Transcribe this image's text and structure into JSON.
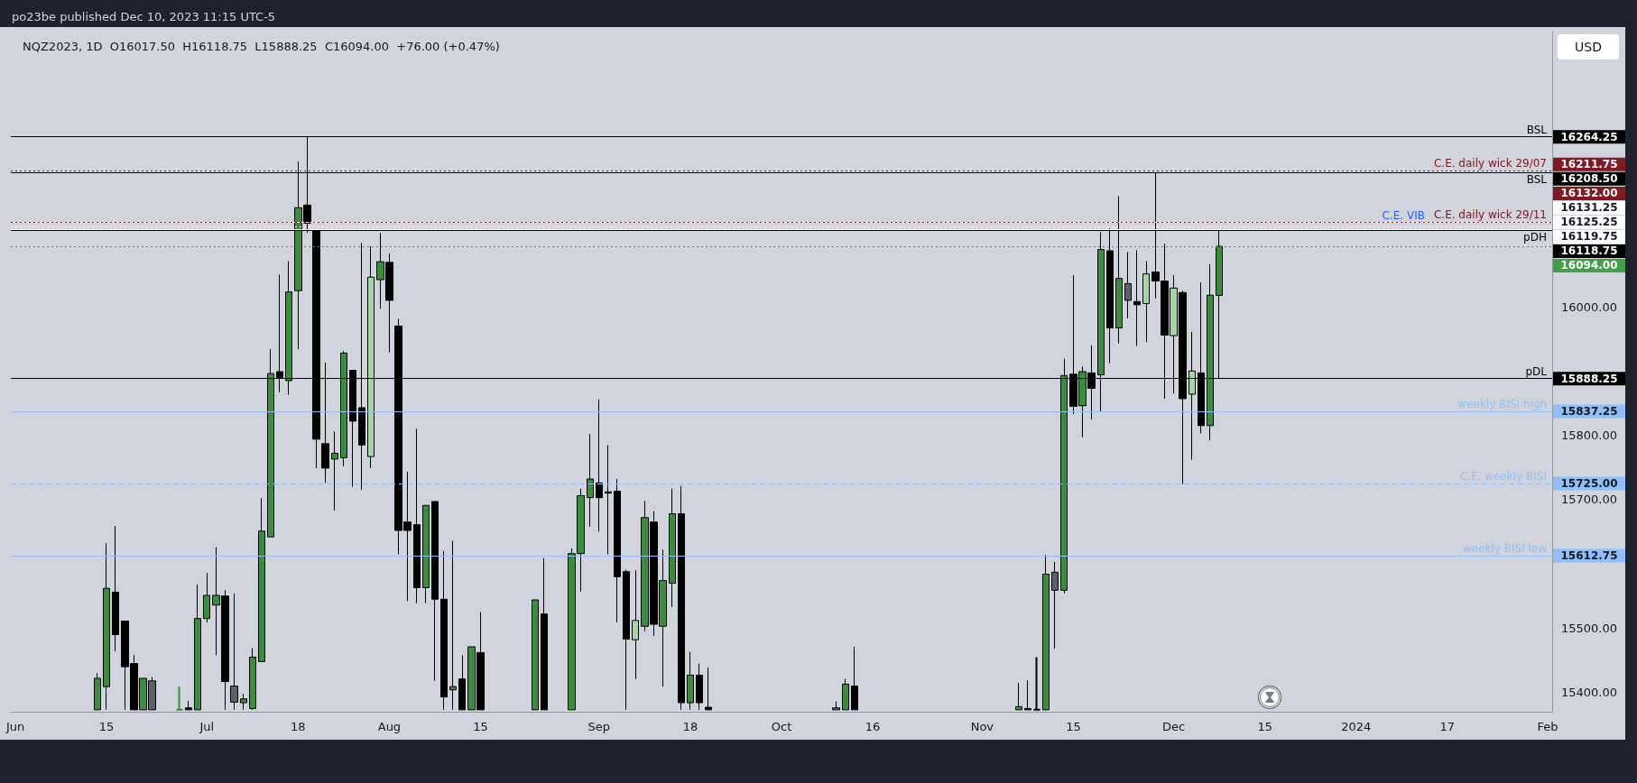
{
  "chart_data": {
    "type": "candlestick",
    "title": "NQZ2023, 1D  O16017.50  H16118.75  L15888.25  C16094.00  +76.00 (+0.47%)",
    "subtitle": "po23be published Dec 10, 2023 11:15 UTC-5",
    "annotations": [
      "USD",
      {
        "text": "BSL",
        "y": 16264.25
      },
      {
        "text": "C.E. daily wick 29/07",
        "y": 16211.75
      },
      {
        "text": "BSL",
        "y": 16208.5
      },
      {
        "text": "C.E. daily wick 29/11",
        "y": 16132
      },
      {
        "text": "C.E. VIB",
        "y": 16125.25
      },
      {
        "text": "pDH",
        "y": 16118.75
      },
      {
        "text": "pDL",
        "y": 15888.25
      },
      {
        "text": "weekly BISI high",
        "y": 15837.25
      },
      {
        "text": "C.E. weekly BISI",
        "y": 15725
      },
      {
        "text": "weekly BISI low",
        "y": 15612.75
      }
    ],
    "categories": [
      "Jun",
      null,
      null,
      null,
      null,
      null,
      null,
      null,
      null,
      null,
      "15",
      null,
      null,
      null,
      null,
      null,
      null,
      null,
      null,
      null,
      null,
      "Jul",
      null,
      null,
      null,
      null,
      null,
      null,
      null,
      null,
      null,
      "18",
      null,
      null,
      null,
      null,
      null,
      null,
      null,
      null,
      null,
      "Aug",
      null,
      null,
      null,
      null,
      null,
      null,
      null,
      null,
      null,
      "15",
      null,
      null,
      null,
      null,
      null,
      null,
      null,
      null,
      null,
      null,
      null,
      null,
      "Sep",
      null,
      null,
      null,
      null,
      null,
      null,
      null,
      null,
      null,
      "18",
      null,
      null,
      null,
      null,
      null,
      null,
      null,
      null,
      null,
      "Oct",
      null,
      null,
      null,
      null,
      null,
      null,
      null,
      null,
      null,
      "16",
      null,
      null,
      null,
      null,
      null,
      null,
      null,
      null,
      null,
      null,
      null,
      "Nov",
      null,
      null,
      null,
      null,
      null,
      null,
      null,
      null,
      null,
      "15",
      null,
      null,
      null,
      null,
      null,
      null,
      null,
      null,
      null,
      null,
      "Dec",
      null,
      null,
      null,
      null,
      null,
      null,
      null,
      null,
      null,
      "15",
      null,
      null,
      null,
      null,
      null,
      null,
      null,
      null,
      null,
      "2024",
      null,
      null,
      null,
      null,
      null,
      null,
      null,
      null,
      null,
      "17",
      null,
      null,
      null,
      null,
      null,
      null,
      null,
      null,
      null,
      null,
      "Feb"
    ],
    "ohlc": [
      null,
      null,
      null,
      null,
      null,
      null,
      null,
      null,
      null,
      [
        15373,
        15430,
        15373,
        15422
      ],
      [
        15409,
        15632,
        15373,
        15562
      ],
      [
        15556,
        15659,
        15464,
        15490
      ],
      [
        15511,
        15511,
        15373,
        15440
      ],
      [
        15445,
        15458,
        15373,
        15373
      ],
      [
        15373,
        15422,
        15373,
        15422
      ],
      [
        15418,
        15424,
        15373,
        15373
      ],
      null,
      null,
      [
        15373,
        15409,
        15373,
        15373
      ],
      [
        15376,
        15387,
        15373,
        15373
      ],
      [
        15373,
        15568,
        15373,
        15515
      ],
      [
        15515,
        15586,
        15509,
        15551
      ],
      [
        15536,
        15626,
        15458,
        15551
      ],
      [
        15550,
        15559,
        15373,
        15417
      ],
      [
        15410,
        15554,
        15373,
        15385
      ],
      [
        15384,
        15398,
        15373,
        15390
      ],
      [
        15375,
        15469,
        15373,
        15455
      ],
      [
        15448,
        15702,
        15448,
        15651
      ],
      [
        15642,
        15934,
        15642,
        15896
      ],
      [
        15899,
        16050,
        15867,
        15890
      ],
      [
        15885,
        16071,
        15863,
        16023
      ],
      [
        16025,
        16226,
        15934,
        16154
      ],
      [
        16158,
        16264.25,
        16115,
        16130
      ],
      [
        16118,
        16118,
        15749,
        15794
      ],
      [
        15787,
        15913,
        15726,
        15749
      ],
      [
        15763,
        15806,
        15683,
        15772
      ],
      [
        15765,
        15931,
        15752,
        15928
      ],
      [
        15901,
        15901,
        15720,
        15822
      ],
      [
        15843,
        16099,
        15715,
        15785
      ],
      [
        15767,
        16094,
        15749,
        16046
      ],
      [
        16042,
        16115,
        15997,
        16070
      ],
      [
        16069,
        16083,
        15929,
        16010
      ],
      [
        15970,
        15981,
        15615,
        15652
      ],
      [
        15665,
        15743,
        15542,
        15652
      ],
      [
        15661,
        15810,
        15539,
        15563
      ],
      [
        15563,
        15691,
        15539,
        15691
      ],
      [
        15697,
        15697,
        15418,
        15545
      ],
      [
        15545,
        15620,
        15373,
        15393
      ],
      [
        15404,
        15636,
        15373,
        15409
      ],
      [
        15421,
        15458,
        15373,
        15373
      ],
      [
        15373,
        15471,
        15373,
        15471
      ],
      [
        15462,
        15525,
        15373,
        15373
      ],
      null,
      null,
      null,
      null,
      null,
      [
        15373,
        15544,
        15373,
        15544
      ],
      [
        15522,
        15609,
        15373,
        15373
      ],
      null,
      null,
      [
        15373,
        15624,
        15373,
        15616
      ],
      [
        15616,
        15717,
        15557,
        15706
      ],
      [
        15703,
        15802,
        15658,
        15732
      ],
      [
        15726,
        15856,
        15650,
        15703
      ],
      [
        15710,
        15785,
        15615,
        15712
      ],
      [
        15713,
        15732,
        15509,
        15580
      ],
      [
        15588,
        15591,
        15373,
        15483
      ],
      [
        15482,
        15590,
        15421,
        15512
      ],
      [
        15503,
        15698,
        15495,
        15672
      ],
      [
        15665,
        15682,
        15488,
        15506
      ],
      [
        15503,
        15622,
        15409,
        15574
      ],
      [
        15570,
        15717,
        15533,
        15678
      ],
      [
        15678,
        15721,
        15373,
        15384
      ],
      [
        15384,
        15463,
        15373,
        15427
      ],
      [
        15427,
        15445,
        15373,
        15384
      ],
      [
        15377,
        15439,
        15373,
        15373
      ],
      null,
      null,
      null,
      null,
      null,
      null,
      null,
      null,
      null,
      null,
      null,
      null,
      null,
      [
        15373,
        15386,
        15373,
        15376
      ],
      [
        15373,
        15421,
        15373,
        15413
      ],
      [
        15410,
        15471,
        15373,
        15373
      ],
      null,
      null,
      null,
      null,
      null,
      null,
      null,
      null,
      null,
      null,
      null,
      null,
      null,
      null,
      null,
      null,
      null,
      [
        15373,
        15415,
        15373,
        15378
      ],
      [
        15375,
        15419,
        15373,
        15373
      ],
      [
        15373,
        15455,
        15373,
        15373
      ],
      [
        15373,
        15614,
        15373,
        15584
      ],
      [
        15587,
        15603,
        15468,
        15559
      ],
      [
        15559,
        15919,
        15554,
        15893
      ],
      [
        15895,
        16049,
        15833,
        15845
      ],
      [
        15846,
        15907,
        15797,
        15899
      ],
      [
        15897,
        15940,
        15825,
        15873
      ],
      [
        15894,
        16116,
        15837.25,
        16089
      ],
      [
        16087,
        16122,
        15912,
        15967
      ],
      [
        15967,
        16172,
        15943,
        16044
      ],
      [
        16036,
        16085,
        15982,
        16010
      ],
      [
        16008,
        16088,
        15939,
        16003
      ],
      [
        16005,
        16071,
        15945,
        16051
      ],
      [
        16054,
        16208.5,
        16013,
        16040
      ],
      [
        16040,
        16098,
        15857,
        15956
      ],
      [
        15955,
        16049,
        15865,
        16029
      ],
      [
        16022,
        16025,
        15724,
        15857
      ],
      [
        15864,
        15961,
        15762,
        15900
      ],
      [
        15897,
        16038,
        15803,
        15815
      ],
      [
        15815,
        16066,
        15792,
        16018
      ],
      [
        16017.5,
        16118.75,
        15888.25,
        16094
      ],
      null,
      null,
      null,
      null,
      null,
      null,
      null,
      null,
      null,
      null,
      null,
      null,
      null,
      null,
      null,
      null,
      null,
      null,
      null,
      null,
      null,
      null,
      null,
      null,
      null,
      null,
      null,
      null,
      null,
      null,
      null,
      null,
      null,
      null,
      null,
      null
    ],
    "colors": [
      null,
      null,
      null,
      null,
      null,
      null,
      null,
      null,
      null,
      "#388e3c",
      "#388e3c",
      "#000000",
      "#000000",
      "#000000",
      "#388e3c",
      "#5d606b",
      null,
      null,
      "#388e3c",
      "#000000",
      "#388e3c",
      "#388e3c",
      "#388e3c",
      "#000000",
      "#5d606b",
      "#388e3c",
      "#388e3c",
      "#388e3c",
      "#388e3c",
      "#000000",
      "#388e3c",
      "#388e3c",
      "#000000",
      "#000000",
      "#000000",
      "#388e3c",
      "#388e3c",
      "#000000",
      "#000000",
      "#a5d6a7",
      "#388e3c",
      "#000000",
      "#000000",
      "#000000",
      "#000000",
      "#388e3c",
      "#000000",
      "#000000",
      "#388e3c",
      "#000000",
      "#388e3c",
      "#000000",
      null,
      null,
      null,
      null,
      null,
      "#388e3c",
      "#000000",
      null,
      null,
      "#388e3c",
      "#388e3c",
      "#388e3c",
      "#000000",
      "#388e3c",
      "#000000",
      "#000000",
      "#a5d6a7",
      "#388e3c",
      "#000000",
      "#388e3c",
      "#388e3c",
      "#000000",
      "#388e3c",
      "#000000",
      "#000000",
      null,
      null,
      null,
      null,
      null,
      null,
      null,
      null,
      null,
      null,
      null,
      null,
      null,
      "#388e3c",
      "#388e3c",
      "#000000",
      null,
      null,
      null,
      null,
      null,
      null,
      null,
      null,
      null,
      null,
      null,
      null,
      null,
      null,
      null,
      null,
      null,
      "#388e3c",
      "#000000",
      "#000000",
      "#388e3c",
      "#5d606b",
      "#388e3c",
      "#000000",
      "#388e3c",
      "#000000",
      "#388e3c",
      "#000000",
      "#388e3c",
      "#5d606b",
      "#000000",
      "#a5d6a7",
      "#000000",
      "#000000",
      "#a5d6a7",
      "#000000",
      "#a5d6a7",
      "#000000",
      "#388e3c",
      "#388e3c",
      null,
      null,
      null,
      null,
      null,
      null,
      null,
      null,
      null,
      null,
      null,
      null,
      null,
      null,
      null,
      null,
      null,
      null,
      null,
      null,
      null,
      null,
      null,
      null,
      null,
      null,
      null,
      null,
      null,
      null,
      null,
      null,
      null,
      null,
      null,
      null
    ],
    "ylim": [
      15370,
      16428
    ],
    "yticks": [
      {
        "value": 15400,
        "label": "15400.00"
      },
      {
        "value": 15500,
        "label": "15500.00"
      },
      {
        "value": 15700,
        "label": "15700.00"
      },
      {
        "value": 15800,
        "label": "15800.00"
      },
      {
        "value": 16000,
        "label": "16000.00"
      }
    ],
    "ref_lines": [
      {
        "axis": "y",
        "value": 16264.25,
        "label": "16264.25",
        "color": "#000000",
        "line_style": "solid"
      },
      {
        "axis": "y",
        "value": 16211.75,
        "label": "16211.75",
        "color": "#801922",
        "line_style": "dotted"
      },
      {
        "axis": "y",
        "value": 16208.5,
        "label": "16208.50",
        "color": "#000000",
        "line_style": "solid"
      },
      {
        "axis": "y",
        "value": 16132,
        "label": "16132.00",
        "color": "#801922",
        "line_style": "dotted"
      },
      {
        "axis": "y",
        "value": 16131.25,
        "label": "16131.25",
        "color": "#ffffff",
        "line_style": "solid"
      },
      {
        "axis": "y",
        "value": 16125.25,
        "label": "16125.25",
        "color": "#ffffff",
        "line_style": "dotted"
      },
      {
        "axis": "y",
        "value": 16119.75,
        "label": "16119.75",
        "color": "#ffffff",
        "line_style": "solid"
      },
      {
        "axis": "y",
        "value": 16118.75,
        "label": "16118.75",
        "color": "#000000",
        "line_style": "solid"
      },
      {
        "axis": "y",
        "value": 16094,
        "label": "16094.00",
        "color": "#43a047",
        "line_style": "dotted"
      },
      {
        "axis": "y",
        "value": 15888.25,
        "label": "15888.25",
        "color": "#000000",
        "line_style": "solid"
      },
      {
        "axis": "y",
        "value": 15837.25,
        "label": "15837.25",
        "color": "#90bff9",
        "line_style": "solid"
      },
      {
        "axis": "y",
        "value": 15725,
        "label": "15725.00",
        "color": "#90bff9",
        "line_style": "dashed"
      },
      {
        "axis": "y",
        "value": 15612.75,
        "label": "15612.75",
        "color": "#90bff9",
        "line_style": "solid"
      }
    ]
  }
}
